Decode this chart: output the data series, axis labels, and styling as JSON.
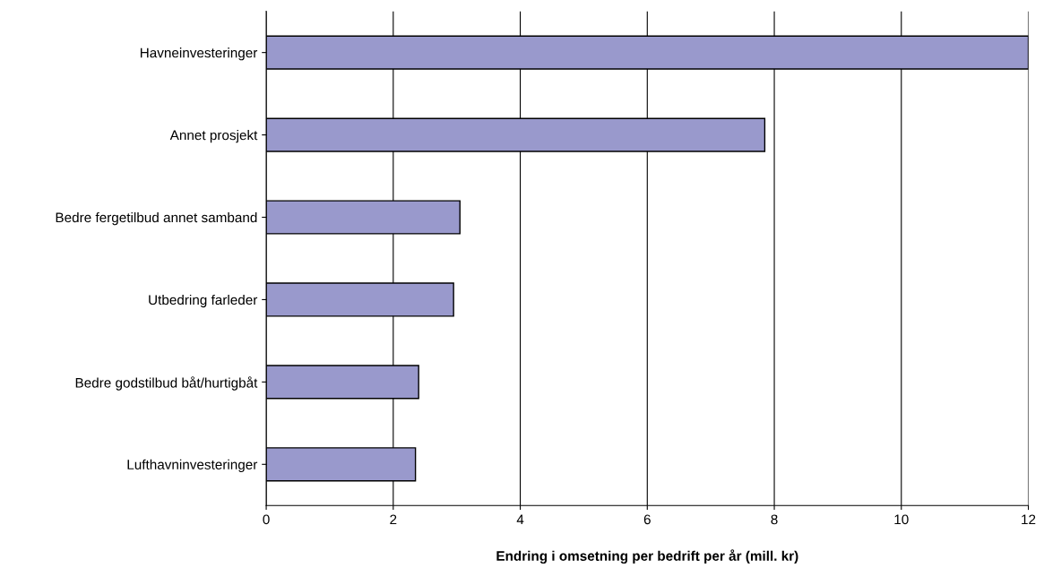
{
  "chart_data": {
    "type": "bar",
    "orientation": "horizontal",
    "xlabel": "Endring i omsetning per bedrift per år (mill. kr)",
    "categories": [
      "Havneinvesteringer",
      "Annet prosjekt",
      "Bedre fergetilbud annet samband",
      "Utbedring farleder",
      "Bedre godstilbud båt/hurtigbåt",
      "Lufthavninvesteringer"
    ],
    "values": [
      12.0,
      7.85,
      3.05,
      2.95,
      2.4,
      2.35
    ],
    "color": "#9999cc",
    "xlim": [
      0,
      12
    ],
    "xticks": [
      0,
      2,
      4,
      6,
      8,
      10,
      12
    ],
    "grid": "x",
    "legend": false
  }
}
